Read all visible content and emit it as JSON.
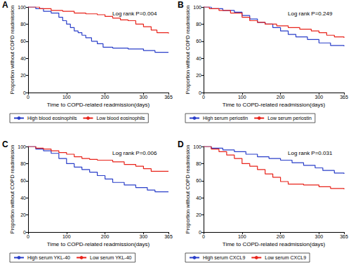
{
  "chart_data": [
    {
      "type": "line",
      "title": "A",
      "annotation": "Log rank P=0.004",
      "x_label": "Time to COPD-related readmission(days)",
      "y_label": "Proportion without COPD readmission",
      "xlim": [
        0,
        365
      ],
      "xticks": [
        0,
        100,
        200,
        300,
        365
      ],
      "ylim": [
        0,
        100
      ],
      "yticks": [
        0,
        20,
        40,
        60,
        80,
        100
      ],
      "grid": false,
      "legend": "bottom",
      "series": [
        {
          "name": "High blood eosinophils",
          "color": "#2a3fc9",
          "line_style": "step",
          "x": [
            0,
            20,
            40,
            60,
            80,
            90,
            100,
            110,
            120,
            130,
            140,
            150,
            165,
            180,
            195,
            220,
            260,
            300,
            330,
            365
          ],
          "values": [
            100,
            98,
            95,
            93,
            88,
            84,
            80,
            76,
            72,
            70,
            67,
            64,
            60,
            57,
            53,
            52,
            51,
            49,
            47,
            47
          ]
        },
        {
          "name": "Low blood eosinophils",
          "color": "#e8231a",
          "line_style": "step",
          "x": [
            0,
            30,
            60,
            90,
            120,
            150,
            180,
            200,
            220,
            240,
            260,
            280,
            300,
            320,
            335,
            365
          ],
          "values": [
            100,
            98,
            96,
            95,
            93,
            92,
            91,
            89,
            87,
            85,
            84,
            80,
            77,
            73,
            70,
            69
          ]
        }
      ]
    },
    {
      "type": "line",
      "title": "B",
      "annotation": "Log rank P=0.249",
      "x_label": "Time to COPD-related readmission(days)",
      "y_label": "Proportion without COPD readmission",
      "xlim": [
        0,
        365
      ],
      "xticks": [
        0,
        100,
        200,
        300,
        365
      ],
      "ylim": [
        0,
        100
      ],
      "yticks": [
        0,
        20,
        40,
        60,
        80,
        100
      ],
      "grid": false,
      "legend": "bottom",
      "series": [
        {
          "name": "High serum periostin",
          "color": "#2a3fc9",
          "line_style": "step",
          "x": [
            0,
            20,
            50,
            80,
            100,
            120,
            140,
            160,
            180,
            200,
            220,
            240,
            270,
            300,
            330,
            365
          ],
          "values": [
            100,
            98,
            96,
            94,
            90,
            86,
            82,
            80,
            76,
            72,
            68,
            65,
            62,
            58,
            55,
            54
          ]
        },
        {
          "name": "Low serum periostin",
          "color": "#e8231a",
          "line_style": "step",
          "x": [
            0,
            15,
            40,
            70,
            100,
            120,
            140,
            160,
            190,
            220,
            250,
            280,
            300,
            320,
            340,
            365
          ],
          "values": [
            100,
            98,
            96,
            93,
            88,
            84,
            82,
            80,
            78,
            76,
            74,
            72,
            70,
            67,
            65,
            64
          ]
        }
      ]
    },
    {
      "type": "line",
      "title": "C",
      "annotation": "Log rank P=0.006",
      "x_label": "Time to COPD-related readmission(days)",
      "y_label": "Proportion without COPD readmission",
      "xlim": [
        0,
        365
      ],
      "xticks": [
        0,
        100,
        200,
        300,
        365
      ],
      "ylim": [
        0,
        100
      ],
      "yticks": [
        0,
        20,
        40,
        60,
        80,
        100
      ],
      "grid": false,
      "legend": "bottom",
      "series": [
        {
          "name": "High serum YKL-40",
          "color": "#2a3fc9",
          "line_style": "step",
          "x": [
            0,
            20,
            40,
            60,
            80,
            100,
            120,
            140,
            160,
            180,
            200,
            220,
            250,
            280,
            310,
            330,
            365
          ],
          "values": [
            100,
            97,
            95,
            92,
            86,
            80,
            76,
            73,
            70,
            66,
            62,
            58,
            55,
            52,
            49,
            47,
            47
          ]
        },
        {
          "name": "Low serum YKL-40",
          "color": "#e8231a",
          "line_style": "step",
          "x": [
            0,
            20,
            40,
            60,
            80,
            100,
            120,
            140,
            160,
            180,
            220,
            250,
            280,
            300,
            320,
            365
          ],
          "values": [
            100,
            98,
            97,
            95,
            93,
            91,
            88,
            86,
            85,
            84,
            82,
            79,
            77,
            74,
            71,
            71
          ]
        }
      ]
    },
    {
      "type": "line",
      "title": "D",
      "annotation": "Log rank P=0.031",
      "x_label": "Time to COPD-related readmission(days)",
      "y_label": "Proportion without COPD readmission",
      "xlim": [
        0,
        365
      ],
      "xticks": [
        0,
        100,
        200,
        300,
        365
      ],
      "ylim": [
        0,
        100
      ],
      "yticks": [
        0,
        20,
        40,
        60,
        80,
        100
      ],
      "grid": false,
      "legend": "bottom",
      "series": [
        {
          "name": "High serum CXCL9",
          "color": "#2a3fc9",
          "line_style": "step",
          "x": [
            0,
            20,
            50,
            80,
            110,
            140,
            170,
            200,
            230,
            260,
            290,
            310,
            340,
            365
          ],
          "values": [
            100,
            98,
            96,
            94,
            91,
            88,
            86,
            84,
            81,
            78,
            75,
            72,
            69,
            68
          ]
        },
        {
          "name": "Low serum CXCL9",
          "color": "#e8231a",
          "line_style": "step",
          "x": [
            0,
            20,
            40,
            60,
            80,
            100,
            120,
            140,
            160,
            180,
            200,
            220,
            260,
            300,
            330,
            365
          ],
          "values": [
            100,
            97,
            94,
            90,
            86,
            80,
            77,
            73,
            68,
            64,
            59,
            56,
            55,
            53,
            51,
            50
          ]
        }
      ]
    }
  ]
}
